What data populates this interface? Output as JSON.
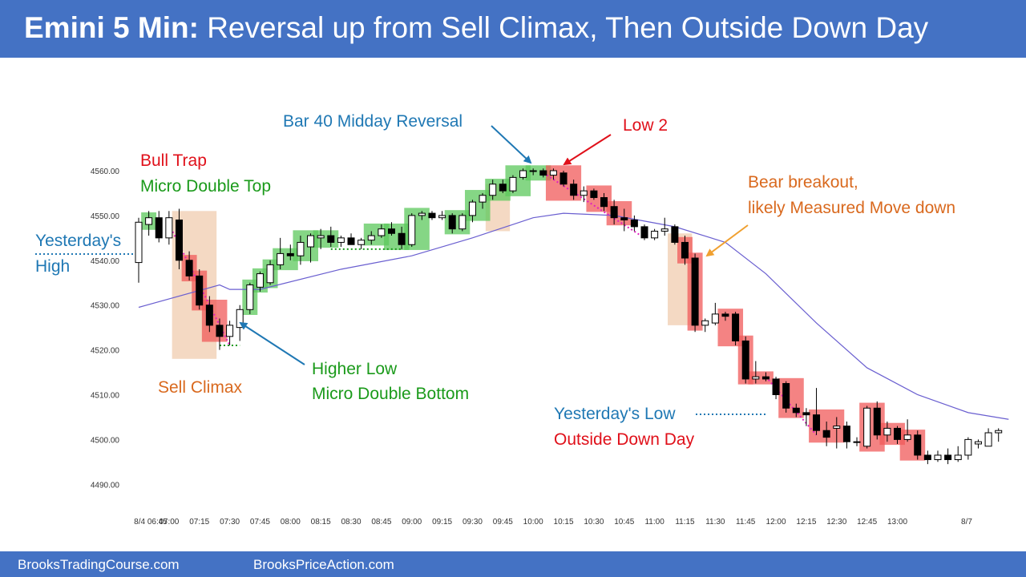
{
  "header": {
    "title_bold": "Emini 5 Min:",
    "title_rest": "Reversal up from Sell Climax, Then Outside Down Day"
  },
  "footer": {
    "link_left": "BrooksTradingCourse.com",
    "link_right": "BrooksPriceAction.com"
  },
  "colors": {
    "header_bg": "#4472c4",
    "bull_highlight": "#5cc85c",
    "bear_highlight": "#f05a5a",
    "climax_box": "#f2d2b8",
    "ema_line": "#6a5fd0",
    "annotation_blue": "#1f78b4",
    "annotation_red": "#e0101a",
    "annotation_green": "#1a9a1a",
    "annotation_orange": "#d9691e"
  },
  "chart_data": {
    "type": "candlestick",
    "title": "Emini 5 Min",
    "ylim": [
      4486,
      4566
    ],
    "y_ticks": [
      "4490.00",
      "4500.00",
      "4510.00",
      "4520.00",
      "4530.00",
      "4540.00",
      "4550.00",
      "4560.00"
    ],
    "x_ticks": [
      "8/4 06:45",
      "07:00",
      "07:15",
      "07:30",
      "07:45",
      "08:00",
      "08:15",
      "08:30",
      "08:45",
      "09:00",
      "09:15",
      "09:30",
      "09:45",
      "10:00",
      "10:15",
      "10:30",
      "10:45",
      "11:00",
      "11:15",
      "11:30",
      "11:45",
      "12:00",
      "12:15",
      "12:30",
      "12:45",
      "13:00",
      "8/7"
    ],
    "bar_interval_minutes": 5,
    "bars": [
      {
        "o": 4539.5,
        "h": 4549.5,
        "l": 4535.0,
        "c": 4548.5
      },
      {
        "o": 4548.0,
        "h": 4551.0,
        "l": 4545.5,
        "c": 4549.5
      },
      {
        "o": 4549.5,
        "h": 4551.0,
        "l": 4544.0,
        "c": 4545.0
      },
      {
        "o": 4545.0,
        "h": 4551.0,
        "l": 4543.5,
        "c": 4549.5
      },
      {
        "o": 4549.0,
        "h": 4551.5,
        "l": 4538.0,
        "c": 4540.0
      },
      {
        "o": 4540.0,
        "h": 4542.0,
        "l": 4535.5,
        "c": 4536.5
      },
      {
        "o": 4536.5,
        "h": 4538.0,
        "l": 4529.0,
        "c": 4530.0
      },
      {
        "o": 4530.0,
        "h": 4532.0,
        "l": 4524.0,
        "c": 4525.5
      },
      {
        "o": 4525.5,
        "h": 4527.0,
        "l": 4520.0,
        "c": 4523.0
      },
      {
        "o": 4523.0,
        "h": 4526.5,
        "l": 4521.0,
        "c": 4525.5
      },
      {
        "o": 4525.0,
        "h": 4530.0,
        "l": 4522.0,
        "c": 4529.0
      },
      {
        "o": 4529.0,
        "h": 4535.0,
        "l": 4528.0,
        "c": 4534.5
      },
      {
        "o": 4534.0,
        "h": 4537.5,
        "l": 4533.0,
        "c": 4537.0
      },
      {
        "o": 4535.0,
        "h": 4540.0,
        "l": 4534.5,
        "c": 4539.0
      },
      {
        "o": 4539.0,
        "h": 4545.0,
        "l": 4538.0,
        "c": 4541.5
      },
      {
        "o": 4541.5,
        "h": 4543.5,
        "l": 4540.0,
        "c": 4541.0
      },
      {
        "o": 4541.0,
        "h": 4545.5,
        "l": 4539.0,
        "c": 4544.0
      },
      {
        "o": 4543.0,
        "h": 4546.0,
        "l": 4539.5,
        "c": 4545.5
      },
      {
        "o": 4545.0,
        "h": 4547.0,
        "l": 4542.5,
        "c": 4545.5
      },
      {
        "o": 4545.5,
        "h": 4547.5,
        "l": 4543.0,
        "c": 4544.0
      },
      {
        "o": 4544.0,
        "h": 4545.5,
        "l": 4543.0,
        "c": 4545.0
      },
      {
        "o": 4545.0,
        "h": 4546.0,
        "l": 4543.5,
        "c": 4543.5
      },
      {
        "o": 4543.5,
        "h": 4545.0,
        "l": 4542.5,
        "c": 4544.5
      },
      {
        "o": 4544.5,
        "h": 4546.5,
        "l": 4543.5,
        "c": 4545.5
      },
      {
        "o": 4545.5,
        "h": 4548.0,
        "l": 4545.0,
        "c": 4547.0
      },
      {
        "o": 4547.0,
        "h": 4548.5,
        "l": 4545.5,
        "c": 4546.0
      },
      {
        "o": 4546.0,
        "h": 4547.5,
        "l": 4542.5,
        "c": 4543.5
      },
      {
        "o": 4543.5,
        "h": 4550.5,
        "l": 4543.0,
        "c": 4550.0
      },
      {
        "o": 4550.0,
        "h": 4551.0,
        "l": 4549.0,
        "c": 4550.5
      },
      {
        "o": 4550.5,
        "h": 4551.0,
        "l": 4549.0,
        "c": 4549.5
      },
      {
        "o": 4549.5,
        "h": 4551.0,
        "l": 4549.0,
        "c": 4550.0
      },
      {
        "o": 4550.0,
        "h": 4550.5,
        "l": 4546.0,
        "c": 4547.0
      },
      {
        "o": 4547.0,
        "h": 4550.5,
        "l": 4546.5,
        "c": 4550.0
      },
      {
        "o": 4550.0,
        "h": 4553.5,
        "l": 4548.5,
        "c": 4553.0
      },
      {
        "o": 4553.0,
        "h": 4555.0,
        "l": 4551.5,
        "c": 4554.5
      },
      {
        "o": 4554.5,
        "h": 4558.0,
        "l": 4553.5,
        "c": 4557.0
      },
      {
        "o": 4557.0,
        "h": 4558.0,
        "l": 4555.0,
        "c": 4555.5
      },
      {
        "o": 4555.5,
        "h": 4559.0,
        "l": 4555.0,
        "c": 4558.5
      },
      {
        "o": 4558.5,
        "h": 4560.5,
        "l": 4558.0,
        "c": 4560.0
      },
      {
        "o": 4560.0,
        "h": 4560.5,
        "l": 4559.0,
        "c": 4560.0
      },
      {
        "o": 4560.0,
        "h": 4560.5,
        "l": 4558.5,
        "c": 4559.0
      },
      {
        "o": 4559.0,
        "h": 4560.5,
        "l": 4558.0,
        "c": 4560.0
      },
      {
        "o": 4559.5,
        "h": 4560.0,
        "l": 4556.5,
        "c": 4557.0
      },
      {
        "o": 4557.0,
        "h": 4558.0,
        "l": 4553.5,
        "c": 4554.5
      },
      {
        "o": 4554.5,
        "h": 4556.5,
        "l": 4553.0,
        "c": 4555.5
      },
      {
        "o": 4555.5,
        "h": 4556.0,
        "l": 4553.5,
        "c": 4554.0
      },
      {
        "o": 4554.0,
        "h": 4555.0,
        "l": 4551.0,
        "c": 4552.0
      },
      {
        "o": 4552.0,
        "h": 4553.5,
        "l": 4548.0,
        "c": 4549.5
      },
      {
        "o": 4549.5,
        "h": 4551.5,
        "l": 4546.5,
        "c": 4549.0
      },
      {
        "o": 4549.0,
        "h": 4550.0,
        "l": 4546.5,
        "c": 4547.5
      },
      {
        "o": 4547.5,
        "h": 4548.0,
        "l": 4544.5,
        "c": 4545.0
      },
      {
        "o": 4545.0,
        "h": 4547.0,
        "l": 4544.5,
        "c": 4546.5
      },
      {
        "o": 4546.5,
        "h": 4549.5,
        "l": 4545.5,
        "c": 4547.0
      },
      {
        "o": 4547.5,
        "h": 4548.0,
        "l": 4543.5,
        "c": 4544.0
      },
      {
        "o": 4544.0,
        "h": 4545.5,
        "l": 4539.0,
        "c": 4540.5
      },
      {
        "o": 4540.5,
        "h": 4541.5,
        "l": 4524.0,
        "c": 4525.5
      },
      {
        "o": 4525.5,
        "h": 4527.0,
        "l": 4524.0,
        "c": 4526.5
      },
      {
        "o": 4526.0,
        "h": 4530.5,
        "l": 4525.5,
        "c": 4528.0
      },
      {
        "o": 4528.0,
        "h": 4528.5,
        "l": 4526.5,
        "c": 4527.5
      },
      {
        "o": 4528.0,
        "h": 4528.5,
        "l": 4521.0,
        "c": 4522.0
      },
      {
        "o": 4522.0,
        "h": 4523.0,
        "l": 4512.5,
        "c": 4513.5
      },
      {
        "o": 4513.5,
        "h": 4517.5,
        "l": 4512.5,
        "c": 4514.0
      },
      {
        "o": 4514.0,
        "h": 4515.0,
        "l": 4513.0,
        "c": 4513.5
      },
      {
        "o": 4513.5,
        "h": 4514.0,
        "l": 4509.0,
        "c": 4510.0
      },
      {
        "o": 4512.5,
        "h": 4513.0,
        "l": 4506.0,
        "c": 4507.0
      },
      {
        "o": 4507.0,
        "h": 4508.0,
        "l": 4505.0,
        "c": 4506.0
      },
      {
        "o": 4506.0,
        "h": 4507.0,
        "l": 4503.0,
        "c": 4505.5
      },
      {
        "o": 4505.5,
        "h": 4511.5,
        "l": 4501.0,
        "c": 4502.0
      },
      {
        "o": 4502.0,
        "h": 4504.0,
        "l": 4498.5,
        "c": 4500.5
      },
      {
        "o": 4502.5,
        "h": 4505.0,
        "l": 4498.0,
        "c": 4503.0
      },
      {
        "o": 4503.0,
        "h": 4504.0,
        "l": 4498.0,
        "c": 4499.5
      },
      {
        "o": 4499.5,
        "h": 4500.5,
        "l": 4498.5,
        "c": 4499.5
      },
      {
        "o": 4498.5,
        "h": 4507.5,
        "l": 4498.0,
        "c": 4507.0
      },
      {
        "o": 4507.0,
        "h": 4508.5,
        "l": 4500.0,
        "c": 4501.0
      },
      {
        "o": 4501.0,
        "h": 4504.0,
        "l": 4499.5,
        "c": 4502.5
      },
      {
        "o": 4502.5,
        "h": 4503.0,
        "l": 4499.0,
        "c": 4500.0
      },
      {
        "o": 4500.0,
        "h": 4504.5,
        "l": 4499.5,
        "c": 4501.0
      },
      {
        "o": 4501.0,
        "h": 4502.0,
        "l": 4495.5,
        "c": 4496.5
      },
      {
        "o": 4496.5,
        "h": 4497.5,
        "l": 4494.5,
        "c": 4495.5
      },
      {
        "o": 4495.5,
        "h": 4497.5,
        "l": 4495.0,
        "c": 4496.5
      },
      {
        "o": 4496.5,
        "h": 4498.0,
        "l": 4494.5,
        "c": 4495.5
      },
      {
        "o": 4495.5,
        "h": 4498.5,
        "l": 4495.0,
        "c": 4496.5
      },
      {
        "o": 4496.5,
        "h": 4500.5,
        "l": 4495.5,
        "c": 4500.0
      },
      {
        "o": 4499.0,
        "h": 4500.0,
        "l": 4498.0,
        "c": 4499.5
      },
      {
        "o": 4498.5,
        "h": 4502.5,
        "l": 4498.5,
        "c": 4501.5
      },
      {
        "o": 4501.5,
        "h": 4502.5,
        "l": 4499.5,
        "c": 4502.0
      }
    ],
    "ema": [
      [
        0,
        4529.5
      ],
      [
        8,
        4534.5
      ],
      [
        9,
        4533.5
      ],
      [
        12,
        4533.5
      ],
      [
        20,
        4538
      ],
      [
        27,
        4541
      ],
      [
        33,
        4545
      ],
      [
        39,
        4549.5
      ],
      [
        42,
        4550.5
      ],
      [
        47,
        4550
      ],
      [
        53,
        4547.5
      ],
      [
        58,
        4544
      ],
      [
        62,
        4537
      ],
      [
        67,
        4526
      ],
      [
        72,
        4516
      ],
      [
        77,
        4510
      ],
      [
        82,
        4506
      ],
      [
        86,
        4504.5
      ]
    ],
    "green_highlights": [
      [
        1,
        1
      ],
      [
        11,
        11
      ],
      [
        12,
        12
      ],
      [
        13,
        13
      ],
      [
        14,
        15
      ],
      [
        16,
        17
      ],
      [
        18,
        19
      ],
      [
        23,
        24
      ],
      [
        25,
        26
      ],
      [
        27,
        28
      ],
      [
        31,
        32
      ],
      [
        33,
        34
      ],
      [
        35,
        36
      ],
      [
        37,
        38
      ],
      [
        39,
        40
      ]
    ],
    "red_highlights": [
      [
        5,
        5
      ],
      [
        6,
        6
      ],
      [
        7,
        8
      ],
      [
        41,
        43
      ],
      [
        45,
        46
      ],
      [
        47,
        48
      ],
      [
        54,
        54
      ],
      [
        55,
        55
      ],
      [
        58,
        59
      ],
      [
        60,
        60
      ],
      [
        61,
        62
      ],
      [
        64,
        65
      ],
      [
        67,
        69
      ],
      [
        72,
        73
      ],
      [
        74,
        75
      ],
      [
        76,
        77
      ]
    ],
    "annotations": {
      "bull_trap": "Bull Trap",
      "micro_double_top": "Micro Double Top",
      "yesterdays_high_1": "Yesterday's",
      "yesterdays_high_2": "High",
      "sell_climax": "Sell Climax",
      "higher_low": "Higher Low",
      "micro_double_bottom": "Micro Double Bottom",
      "bar40": "Bar 40 Midday Reversal",
      "low2": "Low 2",
      "bear_breakout_1": "Bear breakout,",
      "bear_breakout_2": "likely Measured Move down",
      "yesterdays_low": "Yesterday's Low",
      "outside_down_day": "Outside Down Day"
    }
  }
}
